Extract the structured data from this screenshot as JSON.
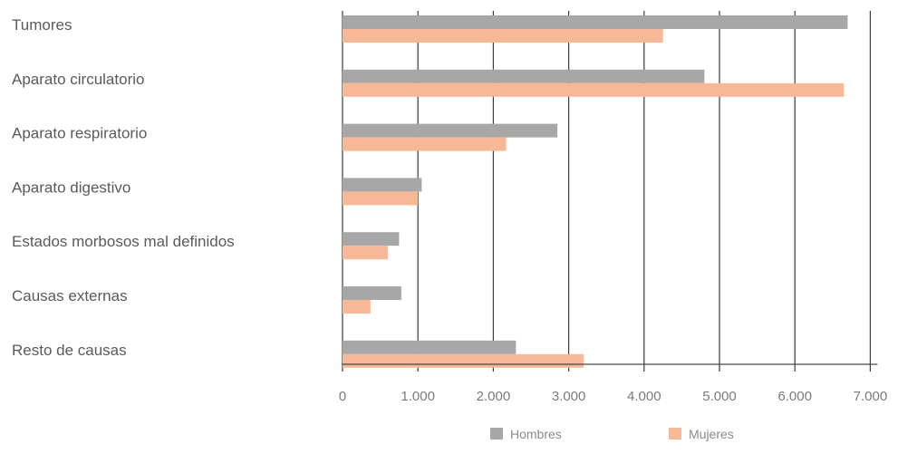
{
  "chart_data": {
    "type": "bar",
    "orientation": "horizontal",
    "categories": [
      "Tumores",
      "Aparato circulatorio",
      "Aparato respiratorio",
      "Aparato digestivo",
      "Estados morbosos mal definidos",
      "Causas externas",
      "Resto de causas"
    ],
    "series": [
      {
        "name": "Hombres",
        "color": "#a7a7a7",
        "values": [
          6700,
          4800,
          2850,
          1050,
          750,
          780,
          2300
        ]
      },
      {
        "name": "Mujeres",
        "color": "#f6b896",
        "values": [
          4250,
          6650,
          2170,
          1000,
          600,
          370,
          3200
        ]
      }
    ],
    "x_ticks": [
      0,
      1000,
      2000,
      3000,
      4000,
      5000,
      6000,
      7000
    ],
    "x_tick_labels": [
      "0",
      "1.000",
      "2.000",
      "3.000",
      "4.000",
      "5.000",
      "6.000",
      "7.000"
    ],
    "xlim": [
      0,
      7000
    ],
    "grid": "vertical",
    "legend_position": "bottom-right",
    "title": "",
    "xlabel": "",
    "ylabel": ""
  }
}
